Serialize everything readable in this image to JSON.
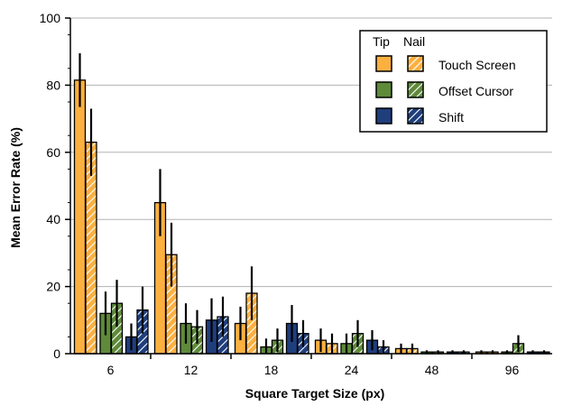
{
  "chart_data": {
    "type": "bar",
    "xlabel": "Square Target Size (px)",
    "ylabel": "Mean Error Rate (%)",
    "ylim": [
      0,
      100
    ],
    "yticks": [
      0,
      20,
      40,
      60,
      80,
      100
    ],
    "grid": "horizontal",
    "legend_placement": "top-right",
    "legend_headers": [
      "Tip",
      "Nail"
    ],
    "categories": [
      "6",
      "12",
      "18",
      "24",
      "48",
      "96"
    ],
    "series": [
      {
        "name": "Touch Screen",
        "color": "#fbb040",
        "tip": {
          "values": [
            81.5,
            45,
            9,
            4,
            1.5,
            0.5
          ],
          "errors": [
            8,
            10,
            5,
            3.5,
            1.5,
            0.5
          ]
        },
        "nail": {
          "values": [
            63,
            29.5,
            18,
            3,
            1.5,
            0.5
          ],
          "errors": [
            10,
            9.5,
            8,
            3,
            1.5,
            0.5
          ]
        }
      },
      {
        "name": "Offset Cursor",
        "color": "#5e8a3a",
        "tip": {
          "values": [
            12,
            9,
            2,
            3,
            0.5,
            0.5
          ],
          "errors": [
            6.5,
            6,
            2.5,
            3,
            0.5,
            0.5
          ]
        },
        "nail": {
          "values": [
            15,
            8,
            4,
            6,
            0.5,
            3
          ],
          "errors": [
            7,
            5,
            3.5,
            4,
            0.5,
            2.5
          ]
        }
      },
      {
        "name": "Shift",
        "color": "#1f3e7c",
        "tip": {
          "values": [
            5,
            10,
            9,
            4,
            0.5,
            0.5
          ],
          "errors": [
            4,
            6.5,
            5.5,
            3,
            0.5,
            0.5
          ]
        },
        "nail": {
          "values": [
            13,
            11,
            6,
            2,
            0.5,
            0.5
          ],
          "errors": [
            7,
            6,
            4,
            2,
            0.5,
            0.5
          ]
        }
      }
    ]
  }
}
